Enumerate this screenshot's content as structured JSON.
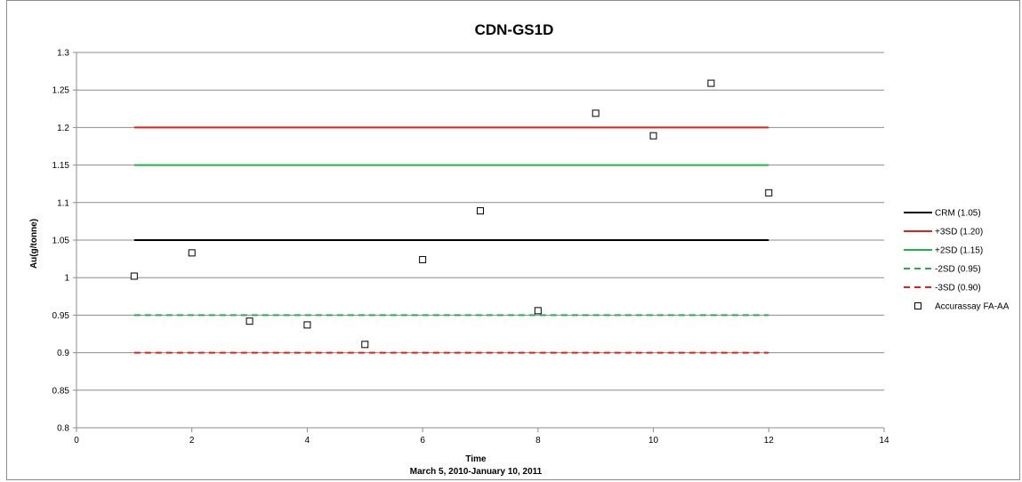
{
  "chart_data": {
    "type": "scatter",
    "title": "CDN-GS1D",
    "xlabel": "Time",
    "xlabel_sub": "March 5, 2010-January 10, 2011",
    "ylabel": "Au(g/tonne)",
    "xlim": [
      0,
      14
    ],
    "ylim": [
      0.8,
      1.3
    ],
    "x_ticks": [
      0,
      2,
      4,
      6,
      8,
      10,
      12,
      14
    ],
    "y_ticks": [
      0.8,
      0.85,
      0.9,
      0.95,
      1,
      1.05,
      1.1,
      1.15,
      1.2,
      1.25,
      1.3
    ],
    "y_tick_labels": [
      "0.8",
      "0.85",
      "0.9",
      "0.95",
      "1",
      "1.05",
      "1.1",
      "1.15",
      "1.2",
      "1.25",
      "1.3"
    ],
    "grid": "horizontal",
    "legend_position": "right",
    "series": [
      {
        "name": "CRM (1.05)",
        "kind": "line",
        "color": "#000000",
        "dash": "solid",
        "x": [
          1,
          12
        ],
        "y": [
          1.05,
          1.05
        ]
      },
      {
        "name": "+3SD (1.20)",
        "kind": "line",
        "color": "#e0201b",
        "dash": "solid",
        "x": [
          1,
          12
        ],
        "y": [
          1.2,
          1.2
        ]
      },
      {
        "name": "+2SD (1.15)",
        "kind": "line",
        "color": "#1fb34a",
        "dash": "solid",
        "x": [
          1,
          12
        ],
        "y": [
          1.15,
          1.15
        ]
      },
      {
        "name": "-2SD (0.95)",
        "kind": "line",
        "color": "#1fb34a",
        "dash": "dashed",
        "x": [
          1,
          12
        ],
        "y": [
          0.95,
          0.95
        ]
      },
      {
        "name": "-3SD (0.90)",
        "kind": "line",
        "color": "#e0201b",
        "dash": "dashed",
        "x": [
          1,
          12
        ],
        "y": [
          0.9,
          0.9
        ]
      },
      {
        "name": "Accurassay FA-AA",
        "kind": "marker",
        "color": "#000000",
        "marker": "square",
        "x": [
          1,
          2,
          3,
          4,
          5,
          6,
          7,
          8,
          9,
          10,
          11,
          12
        ],
        "y": [
          1.002,
          1.033,
          0.942,
          0.937,
          0.911,
          1.024,
          1.089,
          0.956,
          1.219,
          1.189,
          1.259,
          1.113
        ]
      }
    ]
  }
}
